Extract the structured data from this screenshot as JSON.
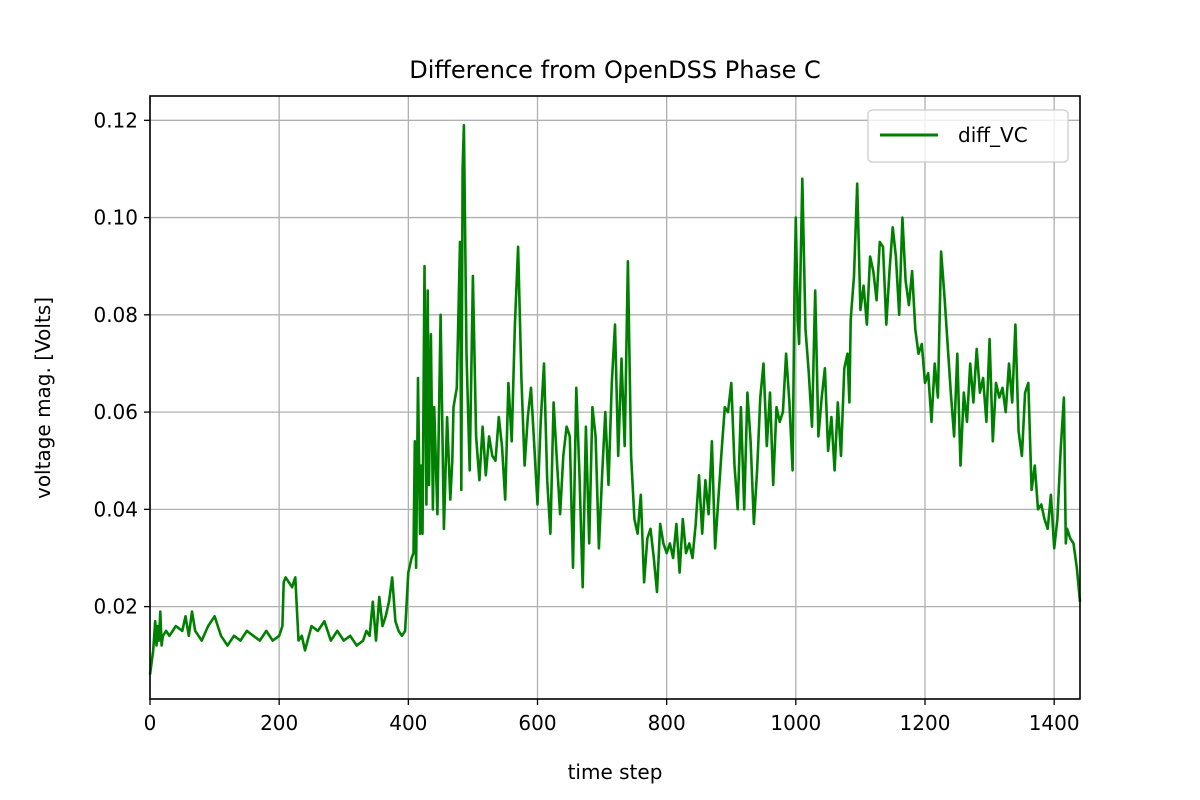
{
  "chart_data": {
    "type": "line",
    "title": "Difference from OpenDSS Phase C",
    "xlabel": "time step",
    "ylabel": "voltage mag. [Volts]",
    "xlim": [
      0,
      1440
    ],
    "ylim": [
      0.001,
      0.125
    ],
    "xticks": [
      0,
      200,
      400,
      600,
      800,
      1000,
      1200,
      1400
    ],
    "xtick_labels": [
      "0",
      "200",
      "400",
      "600",
      "800",
      "1000",
      "1200",
      "1400"
    ],
    "yticks": [
      0.02,
      0.04,
      0.06,
      0.08,
      0.1,
      0.12
    ],
    "ytick_labels": [
      "0.02",
      "0.04",
      "0.06",
      "0.08",
      "0.10",
      "0.12"
    ],
    "grid": true,
    "legend_position": "top-right",
    "series": [
      {
        "name": "diff_VC",
        "color": "#008000",
        "x": [
          0,
          5,
          8,
          10,
          12,
          14,
          16,
          18,
          20,
          25,
          30,
          40,
          50,
          55,
          60,
          65,
          70,
          80,
          90,
          100,
          110,
          120,
          130,
          140,
          150,
          160,
          170,
          180,
          190,
          200,
          205,
          207,
          210,
          215,
          220,
          225,
          230,
          235,
          240,
          250,
          260,
          270,
          280,
          290,
          300,
          310,
          320,
          330,
          335,
          340,
          345,
          350,
          355,
          360,
          365,
          370,
          375,
          380,
          385,
          390,
          395,
          400,
          405,
          408,
          410,
          412,
          415,
          418,
          420,
          422,
          425,
          428,
          430,
          432,
          435,
          438,
          440,
          445,
          450,
          455,
          460,
          465,
          468,
          470,
          475,
          480,
          482,
          484,
          486,
          490,
          495,
          500,
          505,
          510,
          515,
          520,
          525,
          530,
          535,
          540,
          545,
          550,
          555,
          560,
          565,
          570,
          575,
          580,
          585,
          590,
          595,
          600,
          605,
          610,
          615,
          620,
          625,
          630,
          635,
          640,
          645,
          650,
          655,
          660,
          665,
          670,
          675,
          680,
          685,
          690,
          695,
          700,
          705,
          710,
          715,
          720,
          725,
          730,
          735,
          740,
          745,
          750,
          755,
          760,
          765,
          770,
          775,
          780,
          785,
          790,
          795,
          800,
          805,
          810,
          815,
          820,
          825,
          830,
          835,
          840,
          845,
          850,
          855,
          860,
          865,
          870,
          875,
          880,
          885,
          890,
          895,
          900,
          905,
          910,
          915,
          920,
          925,
          930,
          935,
          940,
          945,
          950,
          955,
          960,
          965,
          970,
          975,
          980,
          985,
          990,
          995,
          998,
          1000,
          1003,
          1005,
          1010,
          1015,
          1020,
          1025,
          1030,
          1035,
          1040,
          1045,
          1050,
          1055,
          1060,
          1065,
          1070,
          1075,
          1080,
          1083,
          1085,
          1090,
          1095,
          1100,
          1105,
          1110,
          1115,
          1120,
          1125,
          1130,
          1135,
          1140,
          1145,
          1150,
          1155,
          1160,
          1165,
          1170,
          1175,
          1180,
          1185,
          1190,
          1195,
          1200,
          1205,
          1210,
          1215,
          1220,
          1225,
          1230,
          1235,
          1240,
          1245,
          1250,
          1255,
          1260,
          1265,
          1270,
          1275,
          1280,
          1285,
          1290,
          1295,
          1300,
          1305,
          1310,
          1315,
          1320,
          1325,
          1330,
          1335,
          1340,
          1345,
          1350,
          1355,
          1360,
          1365,
          1370,
          1375,
          1380,
          1385,
          1390,
          1395,
          1400,
          1405,
          1410,
          1415,
          1418,
          1420,
          1425,
          1430,
          1435,
          1440
        ],
        "y": [
          0.006,
          0.011,
          0.017,
          0.012,
          0.016,
          0.013,
          0.019,
          0.012,
          0.014,
          0.015,
          0.014,
          0.016,
          0.015,
          0.018,
          0.014,
          0.019,
          0.015,
          0.013,
          0.016,
          0.018,
          0.014,
          0.012,
          0.014,
          0.013,
          0.015,
          0.014,
          0.013,
          0.015,
          0.013,
          0.014,
          0.016,
          0.025,
          0.026,
          0.025,
          0.024,
          0.026,
          0.013,
          0.014,
          0.011,
          0.016,
          0.015,
          0.017,
          0.013,
          0.015,
          0.013,
          0.014,
          0.012,
          0.013,
          0.015,
          0.014,
          0.021,
          0.013,
          0.022,
          0.016,
          0.018,
          0.021,
          0.026,
          0.017,
          0.015,
          0.014,
          0.015,
          0.027,
          0.03,
          0.031,
          0.054,
          0.028,
          0.067,
          0.035,
          0.049,
          0.035,
          0.09,
          0.041,
          0.085,
          0.045,
          0.076,
          0.04,
          0.061,
          0.039,
          0.08,
          0.036,
          0.059,
          0.042,
          0.05,
          0.061,
          0.065,
          0.095,
          0.044,
          0.11,
          0.119,
          0.072,
          0.048,
          0.088,
          0.055,
          0.046,
          0.057,
          0.047,
          0.055,
          0.051,
          0.05,
          0.059,
          0.053,
          0.042,
          0.066,
          0.054,
          0.078,
          0.094,
          0.067,
          0.049,
          0.059,
          0.065,
          0.053,
          0.041,
          0.058,
          0.07,
          0.046,
          0.035,
          0.062,
          0.05,
          0.039,
          0.051,
          0.057,
          0.055,
          0.028,
          0.065,
          0.047,
          0.024,
          0.057,
          0.033,
          0.061,
          0.055,
          0.032,
          0.047,
          0.06,
          0.045,
          0.066,
          0.078,
          0.051,
          0.071,
          0.053,
          0.091,
          0.051,
          0.038,
          0.035,
          0.043,
          0.025,
          0.034,
          0.036,
          0.03,
          0.023,
          0.037,
          0.033,
          0.031,
          0.033,
          0.03,
          0.037,
          0.027,
          0.038,
          0.031,
          0.033,
          0.03,
          0.037,
          0.047,
          0.035,
          0.046,
          0.039,
          0.054,
          0.032,
          0.042,
          0.052,
          0.061,
          0.06,
          0.066,
          0.049,
          0.04,
          0.061,
          0.04,
          0.064,
          0.054,
          0.037,
          0.048,
          0.063,
          0.07,
          0.053,
          0.064,
          0.045,
          0.061,
          0.058,
          0.06,
          0.072,
          0.062,
          0.048,
          0.085,
          0.1,
          0.079,
          0.074,
          0.108,
          0.077,
          0.068,
          0.057,
          0.085,
          0.055,
          0.063,
          0.069,
          0.052,
          0.059,
          0.048,
          0.062,
          0.051,
          0.069,
          0.072,
          0.062,
          0.079,
          0.088,
          0.107,
          0.081,
          0.086,
          0.078,
          0.092,
          0.089,
          0.083,
          0.095,
          0.094,
          0.078,
          0.089,
          0.098,
          0.092,
          0.08,
          0.1,
          0.087,
          0.082,
          0.089,
          0.077,
          0.072,
          0.074,
          0.066,
          0.068,
          0.058,
          0.07,
          0.063,
          0.093,
          0.084,
          0.074,
          0.064,
          0.055,
          0.072,
          0.049,
          0.064,
          0.058,
          0.07,
          0.062,
          0.073,
          0.064,
          0.067,
          0.058,
          0.075,
          0.054,
          0.066,
          0.063,
          0.065,
          0.06,
          0.07,
          0.062,
          0.078,
          0.056,
          0.051,
          0.064,
          0.066,
          0.044,
          0.049,
          0.04,
          0.041,
          0.038,
          0.036,
          0.043,
          0.032,
          0.038,
          0.052,
          0.063,
          0.033,
          0.036,
          0.034,
          0.033,
          0.028,
          0.021
        ]
      }
    ]
  }
}
